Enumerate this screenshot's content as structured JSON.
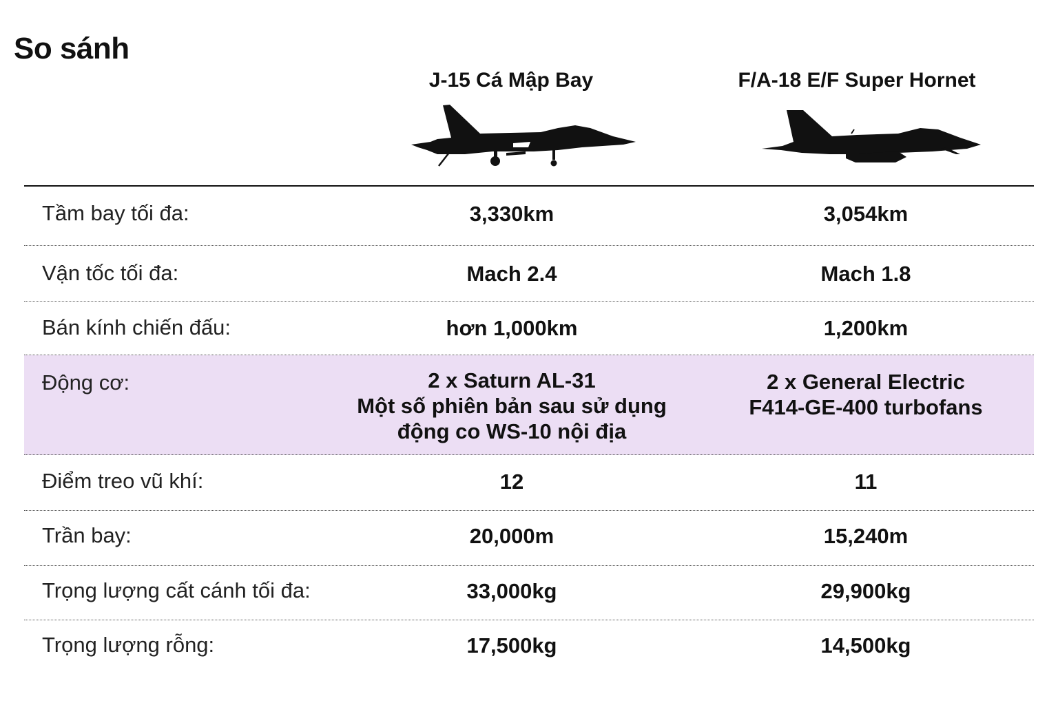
{
  "title": "So sánh",
  "aircraft": [
    {
      "name": "J-15 Cá Mập Bay"
    },
    {
      "name": "F/A-18 E/F Super Hornet"
    }
  ],
  "rows": [
    {
      "label": "Tầm bay tối đa:",
      "a": "3,330km",
      "b": "3,054km"
    },
    {
      "label": "Vận tốc tối đa:",
      "a": "Mach 2.4",
      "b": "Mach 1.8"
    },
    {
      "label": "Bán kính chiến đấu:",
      "a": "hơn 1,000km",
      "b": "1,200km"
    },
    {
      "label": "Động cơ:",
      "a": "2 x Saturn AL-31\nMột số phiên bản sau sử dụng\nđộng co WS-10 nội địa",
      "b": "2 x General Electric\nF414-GE-400 turbofans"
    },
    {
      "label": "Điểm treo vũ khí:",
      "a": "12",
      "b": "11"
    },
    {
      "label": "Trần bay:",
      "a": "20,000m",
      "b": "15,240m"
    },
    {
      "label": "Trọng lượng cất cánh tối đa:",
      "a": "33,000kg",
      "b": "29,900kg"
    },
    {
      "label": "Trọng lượng rỗng:",
      "a": "17,500kg",
      "b": "14,500kg"
    }
  ],
  "colors": {
    "highlight": "#ecdef4",
    "text": "#111111"
  }
}
